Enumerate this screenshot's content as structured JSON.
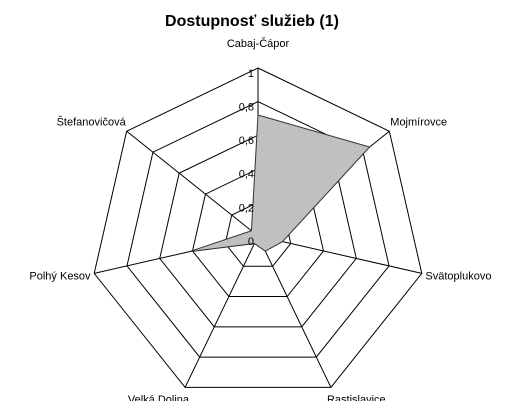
{
  "chart_data": {
    "type": "radar",
    "title": "Dostupnosť služieb (1)",
    "categories": [
      "Cabaj-Čápor",
      "Mojmírovce",
      "Svätoplukovo",
      "Rastislavice",
      "Velká Dolina",
      "Polhý Kesov",
      "Štefanovičová"
    ],
    "values": [
      0.72,
      0.85,
      0.15,
      0.1,
      0.05,
      0.42,
      0.05
    ],
    "color": "#c0c0c0",
    "ylim": [
      0,
      1
    ],
    "yticks": [
      0,
      {
        "value": 0.2,
        "label": "0,2"
      },
      {
        "value": 0.4,
        "label": "0,4"
      },
      {
        "value": 0.6,
        "label": "0,6"
      },
      {
        "value": 0.8,
        "label": "0,8"
      },
      1
    ],
    "grid": true
  }
}
